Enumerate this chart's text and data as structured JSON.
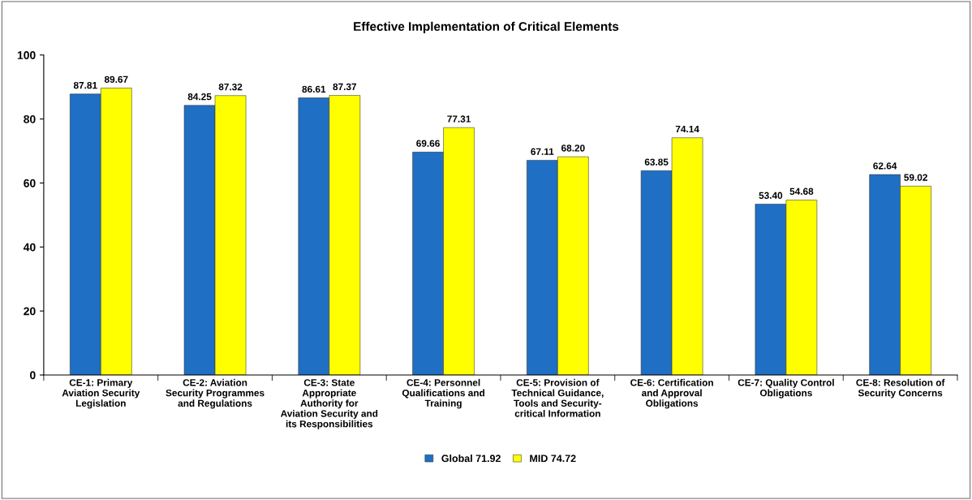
{
  "chart_data": {
    "type": "bar",
    "title": "Effective Implementation of Critical Elements",
    "categories": [
      "CE-1: Primary\nAviation Security\nLegislation",
      "CE-2: Aviation\nSecurity Programmes\nand Regulations",
      "CE-3: State\nAppropriate\nAuthority for\nAviation Security and\nits Responsibilities",
      "CE-4: Personnel\nQualifications and\nTraining",
      "CE-5: Provision of\nTechnical Guidance,\nTools and Security-\ncritical Information",
      "CE-6: Certification\nand Approval\nObligations",
      "CE-7: Quality Control\nObligations",
      "CE-8: Resolution of\nSecurity Concerns"
    ],
    "series": [
      {
        "name": "Global 71.92",
        "color": "#1f6fc4",
        "values": [
          87.81,
          84.25,
          86.61,
          69.66,
          67.11,
          63.85,
          53.4,
          62.64
        ],
        "value_labels": [
          "87.81",
          "84.25",
          "86.61",
          "69.66",
          "67.11",
          "63.85",
          "53.40",
          "62.64"
        ]
      },
      {
        "name": "MID 74.72",
        "color": "#ffff00",
        "values": [
          89.67,
          87.32,
          87.37,
          77.31,
          68.2,
          74.14,
          54.68,
          59.02
        ],
        "value_labels": [
          "89.67",
          "87.32",
          "87.37",
          "77.31",
          "68.20",
          "74.14",
          "54.68",
          "59.02"
        ]
      }
    ],
    "ylim": [
      0,
      100
    ],
    "yticks": [
      0,
      20,
      40,
      60,
      80,
      100
    ],
    "grid": false,
    "legend": "bottom"
  }
}
